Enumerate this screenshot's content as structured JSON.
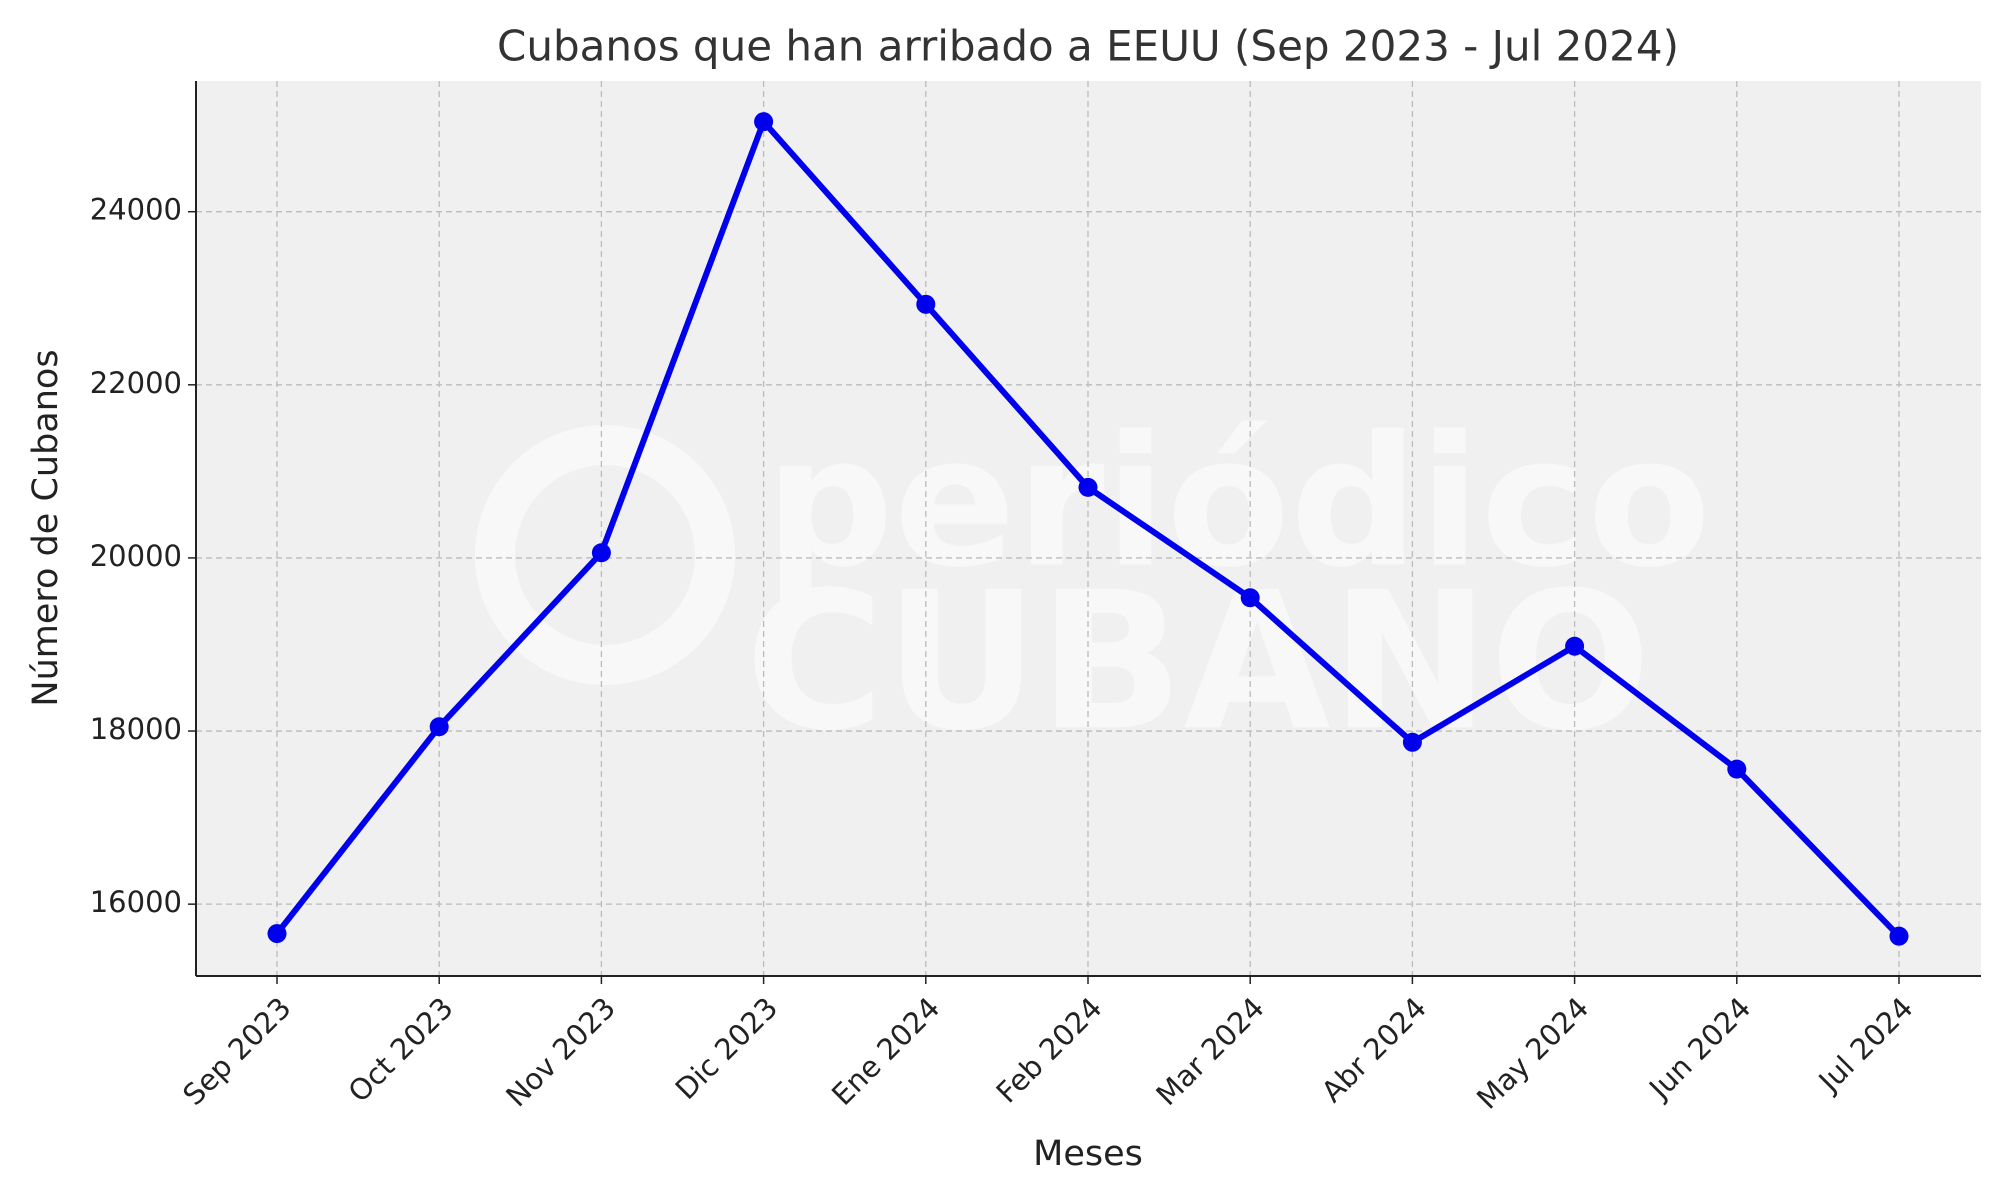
{
  "chart_data": {
    "type": "line",
    "title": "Cubanos que han arribado a EEUU (Sep 2023 - Jul 2024)",
    "x_label": "Meses",
    "y_label": "Número de Cubanos",
    "watermark": [
      "periódico",
      "CUBANO"
    ],
    "categories": [
      "Sep 2023",
      "Oct 2023",
      "Nov 2023",
      "Dic 2023",
      "Ene 2024",
      "Feb 2024",
      "Mar 2024",
      "Abr 2024",
      "May 2024",
      "Jun 2024",
      "Jul 2024"
    ],
    "series": [
      {
        "name": "Cubanos",
        "color": "#0000ee",
        "values": [
          15660,
          18050,
          20060,
          25040,
          22930,
          20815,
          19540,
          17870,
          18980,
          17560,
          15630
        ]
      }
    ],
    "ylim": [
      15170,
      25510
    ],
    "yticks": [
      16000,
      18000,
      20000,
      22000,
      24000
    ],
    "grid": true
  }
}
